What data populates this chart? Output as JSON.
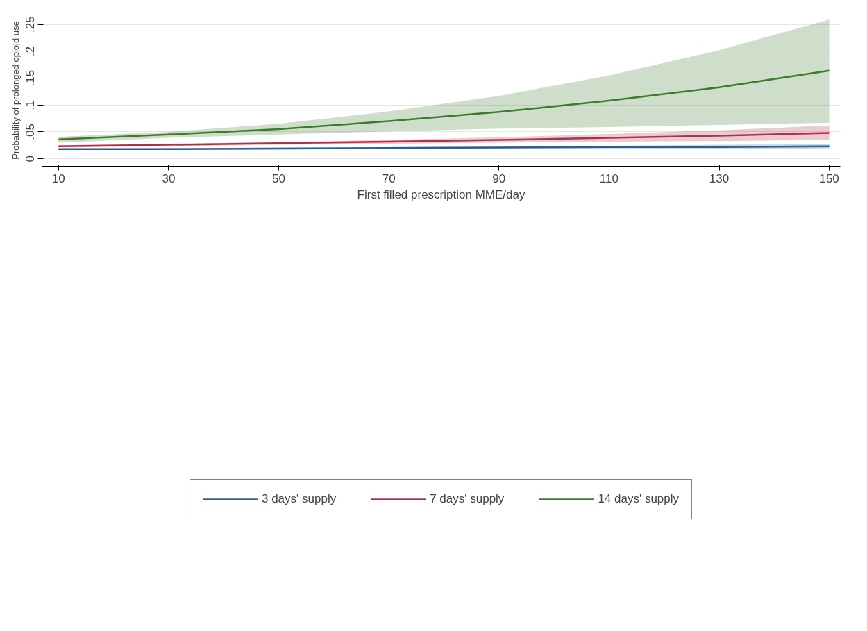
{
  "chart_data": {
    "type": "line",
    "xlabel": "First filled prescription MME/day",
    "ylabel": "Probability of prolonged opioid use",
    "x": [
      10,
      30,
      50,
      70,
      90,
      110,
      130,
      150
    ],
    "xlim": [
      7,
      152
    ],
    "xticks": [
      10,
      30,
      50,
      70,
      90,
      110,
      130,
      150
    ],
    "ylim": [
      -0.014,
      0.269
    ],
    "yticks": [
      {
        "value": 0,
        "label": "0"
      },
      {
        "value": 0.05,
        "label": ".05"
      },
      {
        "value": 0.1,
        "label": ".1"
      },
      {
        "value": 0.15,
        "label": ".15"
      },
      {
        "value": 0.2,
        "label": ".2"
      },
      {
        "value": 0.25,
        "label": ".25"
      }
    ],
    "grid": "y",
    "legend": "bottom",
    "series": [
      {
        "name": "3 days' supply",
        "color": "#2f5f8f",
        "values": [
          0.018,
          0.018,
          0.019,
          0.02,
          0.021,
          0.022,
          0.022,
          0.023
        ],
        "lower": [
          0.016,
          0.017,
          0.017,
          0.018,
          0.019,
          0.019,
          0.019,
          0.019
        ],
        "upper": [
          0.019,
          0.02,
          0.021,
          0.022,
          0.023,
          0.024,
          0.026,
          0.027
        ]
      },
      {
        "name": "7 days' supply",
        "color": "#b0304a",
        "values": [
          0.023,
          0.026,
          0.029,
          0.032,
          0.035,
          0.039,
          0.043,
          0.048
        ],
        "lower": [
          0.021,
          0.023,
          0.026,
          0.028,
          0.03,
          0.032,
          0.033,
          0.035
        ],
        "upper": [
          0.025,
          0.028,
          0.031,
          0.035,
          0.04,
          0.046,
          0.053,
          0.062
        ]
      },
      {
        "name": "14 days' supply",
        "color": "#3d7a2a",
        "values": [
          0.036,
          0.045,
          0.055,
          0.07,
          0.087,
          0.108,
          0.133,
          0.164
        ],
        "lower": [
          0.03,
          0.039,
          0.045,
          0.051,
          0.056,
          0.059,
          0.063,
          0.067
        ],
        "upper": [
          0.041,
          0.05,
          0.065,
          0.088,
          0.117,
          0.155,
          0.202,
          0.259
        ]
      }
    ]
  }
}
